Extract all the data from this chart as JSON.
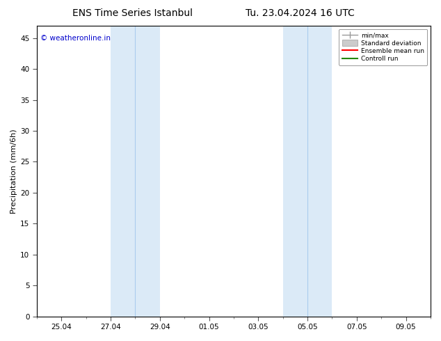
{
  "title_left": "ENS Time Series Istanbul",
  "title_right": "Tu. 23.04.2024 16 UTC",
  "ylabel": "Precipitation (mm/6h)",
  "watermark": "© weatheronline.in",
  "watermark_color": "#0000cc",
  "background_color": "#ffffff",
  "plot_bg_color": "#ffffff",
  "ylim": [
    0,
    47
  ],
  "yticks": [
    0,
    5,
    10,
    15,
    20,
    25,
    30,
    35,
    40,
    45
  ],
  "xtick_labels": [
    "25.04",
    "27.04",
    "29.04",
    "01.05",
    "03.05",
    "05.05",
    "07.05",
    "09.05"
  ],
  "xtick_days": [
    2,
    4,
    6,
    8,
    10,
    12,
    14,
    16
  ],
  "xlim": [
    1,
    17
  ],
  "shade1_start": 4,
  "shade1_end": 6,
  "shade2_start": 11,
  "shade2_end": 13,
  "shade_color": "#dbeaf7",
  "shade_line_color": "#aaccee",
  "legend_entries": [
    {
      "label": "min/max",
      "color": "#999999",
      "lw": 1.0
    },
    {
      "label": "Standard deviation",
      "color": "#cccccc",
      "lw": 6
    },
    {
      "label": "Ensemble mean run",
      "color": "#ff0000",
      "lw": 1.5
    },
    {
      "label": "Controll run",
      "color": "#228800",
      "lw": 1.5
    }
  ],
  "title_fontsize": 10,
  "tick_fontsize": 7.5,
  "ylabel_fontsize": 8,
  "watermark_fontsize": 7.5
}
